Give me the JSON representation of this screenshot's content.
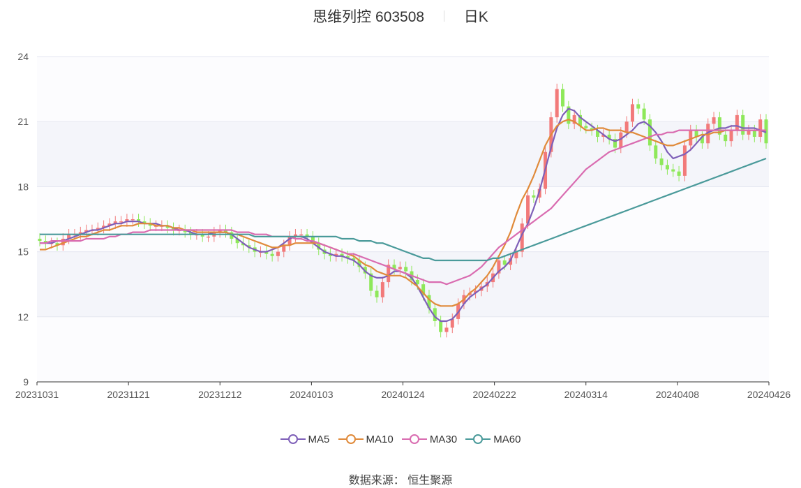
{
  "title": {
    "name": "思维列控 603508",
    "period": "日K"
  },
  "source_text": "数据来源： 恒生聚源",
  "colors": {
    "up": "#f27a7a",
    "down": "#8ee85a",
    "MA5": "#7e5fb8",
    "MA10": "#e08a3a",
    "MA30": "#d96bb0",
    "MA60": "#4a9a9a"
  },
  "chart_data": {
    "type": "candlestick",
    "ylim": [
      9,
      24
    ],
    "y_ticks": [
      "9",
      "12",
      "15",
      "18",
      "21",
      "24"
    ],
    "x_ticks": [
      "20231031",
      "20231121",
      "20231212",
      "20240103",
      "20240124",
      "20240222",
      "20240314",
      "20240408",
      "20240426"
    ],
    "legend": [
      "MA5",
      "MA10",
      "MA30",
      "MA60"
    ],
    "legend_position": "bottom",
    "grid": true,
    "ohlc_close": [
      15.5,
      15.4,
      15.4,
      15.3,
      15.6,
      15.8,
      15.8,
      15.9,
      16.0,
      16.0,
      16.1,
      16.2,
      16.3,
      16.4,
      16.4,
      16.5,
      16.5,
      16.4,
      16.3,
      16.2,
      16.2,
      16.2,
      16.1,
      16.0,
      16.0,
      15.9,
      15.8,
      15.8,
      15.7,
      15.7,
      15.9,
      16.0,
      15.9,
      15.6,
      15.4,
      15.3,
      15.2,
      15.0,
      15.0,
      14.9,
      14.8,
      15.0,
      15.3,
      15.7,
      15.8,
      15.8,
      15.7,
      15.4,
      15.1,
      14.9,
      14.8,
      14.9,
      14.8,
      14.7,
      14.6,
      14.3,
      14.0,
      13.2,
      12.9,
      13.6,
      14.4,
      14.2,
      14.3,
      14.1,
      13.7,
      13.5,
      13.0,
      12.4,
      11.8,
      11.3,
      11.5,
      11.9,
      12.6,
      13.0,
      13.1,
      13.2,
      13.4,
      13.6,
      14.0,
      14.6,
      14.4,
      14.7,
      15.0,
      16.3,
      17.6,
      17.5,
      17.9,
      19.6,
      21.2,
      22.5,
      21.7,
      20.9,
      21.3,
      20.8,
      20.7,
      20.6,
      20.3,
      20.4,
      20.2,
      19.8,
      20.5,
      21.0,
      21.8,
      21.6,
      21.1,
      19.9,
      19.3,
      19.0,
      18.8,
      18.7,
      18.5,
      19.9,
      20.6,
      20.3,
      20.0,
      20.9,
      21.2,
      20.4,
      20.1,
      20.6,
      21.3,
      20.4,
      20.6,
      20.3,
      21.1,
      20.0
    ],
    "ohlc_open": [
      15.6,
      15.5,
      15.4,
      15.4,
      15.3,
      15.6,
      15.8,
      15.8,
      15.9,
      16.0,
      16.0,
      16.1,
      16.2,
      16.3,
      16.4,
      16.4,
      16.5,
      16.5,
      16.4,
      16.3,
      16.2,
      16.2,
      16.2,
      16.1,
      16.0,
      16.0,
      15.9,
      15.8,
      15.8,
      15.7,
      15.7,
      15.9,
      16.0,
      15.9,
      15.6,
      15.4,
      15.3,
      15.2,
      15.0,
      15.0,
      14.9,
      14.8,
      15.0,
      15.3,
      15.7,
      15.8,
      15.8,
      15.7,
      15.4,
      15.1,
      14.9,
      14.8,
      14.9,
      14.8,
      14.7,
      14.6,
      14.3,
      14.0,
      13.2,
      12.9,
      13.6,
      14.4,
      14.2,
      14.3,
      14.1,
      13.7,
      13.5,
      13.0,
      12.4,
      11.8,
      11.3,
      11.5,
      11.9,
      12.6,
      13.0,
      13.1,
      13.2,
      13.4,
      13.6,
      14.0,
      14.6,
      14.4,
      14.7,
      15.0,
      16.3,
      17.6,
      17.5,
      17.9,
      19.6,
      21.2,
      22.5,
      21.7,
      20.9,
      21.3,
      20.8,
      20.7,
      20.6,
      20.3,
      20.4,
      20.2,
      19.8,
      20.5,
      21.0,
      21.8,
      21.6,
      21.1,
      19.9,
      19.3,
      19.0,
      18.8,
      18.7,
      18.5,
      19.9,
      20.6,
      20.3,
      20.0,
      20.9,
      21.2,
      20.4,
      20.1,
      20.6,
      21.3,
      20.4,
      20.6,
      20.3,
      21.1
    ],
    "ma_series": [
      {
        "name": "MA5",
        "values": [
          15.4,
          15.4,
          15.4,
          15.5,
          15.5,
          15.6,
          15.7,
          15.8,
          15.9,
          16.0,
          16.0,
          16.1,
          16.2,
          16.3,
          16.3,
          16.4,
          16.4,
          16.4,
          16.3,
          16.3,
          16.3,
          16.2,
          16.2,
          16.1,
          16.0,
          16.0,
          15.9,
          15.8,
          15.8,
          15.8,
          15.9,
          15.9,
          15.9,
          15.8,
          15.6,
          15.4,
          15.2,
          15.1,
          15.0,
          15.0,
          15.1,
          15.2,
          15.4,
          15.6,
          15.7,
          15.7,
          15.6,
          15.4,
          15.2,
          15.0,
          14.9,
          14.8,
          14.8,
          14.7,
          14.6,
          14.4,
          14.1,
          13.9,
          13.8,
          13.8,
          13.9,
          14.1,
          14.1,
          14.0,
          13.8,
          13.4,
          12.9,
          12.4,
          12.0,
          11.8,
          11.8,
          11.9,
          12.2,
          12.6,
          12.9,
          13.1,
          13.3,
          13.5,
          13.8,
          14.1,
          14.3,
          14.6,
          15.2,
          15.8,
          16.3,
          17.0,
          17.8,
          18.8,
          19.8,
          20.7,
          21.3,
          21.6,
          21.5,
          21.2,
          21.0,
          20.8,
          20.6,
          20.4,
          20.2,
          20.1,
          20.2,
          20.4,
          20.6,
          20.9,
          21.0,
          20.8,
          20.5,
          20.1,
          19.6,
          19.3,
          19.4,
          19.5,
          19.7,
          20.0,
          20.3,
          20.5,
          20.6,
          20.7,
          20.7,
          20.8,
          20.8,
          20.7,
          20.7,
          20.7,
          20.6,
          20.5
        ]
      },
      {
        "name": "MA10",
        "values": [
          15.1,
          15.1,
          15.2,
          15.3,
          15.4,
          15.5,
          15.6,
          15.7,
          15.7,
          15.8,
          15.9,
          16.0,
          16.0,
          16.1,
          16.2,
          16.2,
          16.2,
          16.3,
          16.3,
          16.3,
          16.2,
          16.2,
          16.2,
          16.1,
          16.1,
          16.0,
          16.0,
          15.9,
          15.9,
          15.9,
          15.9,
          15.9,
          15.9,
          15.8,
          15.8,
          15.7,
          15.6,
          15.5,
          15.4,
          15.3,
          15.2,
          15.2,
          15.3,
          15.3,
          15.4,
          15.4,
          15.4,
          15.4,
          15.4,
          15.3,
          15.2,
          15.1,
          15.0,
          14.9,
          14.8,
          14.6,
          14.4,
          14.3,
          14.1,
          14.0,
          13.9,
          13.9,
          13.9,
          13.8,
          13.6,
          13.4,
          13.1,
          12.8,
          12.6,
          12.5,
          12.5,
          12.5,
          12.6,
          12.8,
          13.1,
          13.3,
          13.6,
          13.9,
          14.3,
          14.8,
          15.3,
          15.9,
          16.7,
          17.4,
          17.9,
          18.5,
          19.2,
          19.9,
          20.4,
          20.8,
          21.0,
          21.1,
          21.0,
          20.8,
          20.6,
          20.6,
          20.7,
          20.7,
          20.6,
          20.6,
          20.6,
          20.5,
          20.5,
          20.4,
          20.3,
          20.2,
          20.1,
          20.0,
          19.9,
          19.9,
          20.0,
          20.1,
          20.2,
          20.3,
          20.4,
          20.4,
          20.5,
          20.5,
          20.6,
          20.6,
          20.6,
          20.6,
          20.6,
          20.6,
          20.6,
          20.6
        ]
      },
      {
        "name": "MA30",
        "values": [
          15.4,
          15.4,
          15.5,
          15.5,
          15.5,
          15.5,
          15.5,
          15.5,
          15.6,
          15.6,
          15.6,
          15.6,
          15.7,
          15.7,
          15.8,
          15.8,
          15.9,
          15.9,
          15.9,
          16.0,
          16.0,
          16.0,
          16.0,
          16.0,
          16.0,
          16.0,
          16.0,
          16.0,
          16.0,
          16.0,
          16.0,
          16.0,
          16.0,
          16.0,
          15.9,
          15.9,
          15.9,
          15.8,
          15.8,
          15.8,
          15.7,
          15.7,
          15.7,
          15.7,
          15.6,
          15.6,
          15.5,
          15.5,
          15.4,
          15.3,
          15.2,
          15.1,
          15.0,
          14.9,
          14.9,
          14.8,
          14.7,
          14.6,
          14.5,
          14.4,
          14.3,
          14.2,
          14.1,
          14.0,
          13.9,
          13.8,
          13.7,
          13.6,
          13.6,
          13.6,
          13.5,
          13.6,
          13.7,
          13.8,
          13.9,
          14.1,
          14.3,
          14.6,
          14.9,
          15.2,
          15.4,
          15.6,
          15.8,
          16.0,
          16.2,
          16.4,
          16.6,
          16.8,
          17.0,
          17.3,
          17.6,
          17.9,
          18.2,
          18.5,
          18.8,
          19.0,
          19.2,
          19.4,
          19.6,
          19.7,
          19.8,
          19.9,
          20.0,
          20.1,
          20.2,
          20.3,
          20.4,
          20.4,
          20.5,
          20.5,
          20.6,
          20.6,
          20.6,
          20.6,
          20.6,
          20.6,
          20.6,
          20.6,
          20.6,
          20.6,
          20.6,
          20.6,
          20.6,
          20.6,
          20.6,
          20.6
        ]
      },
      {
        "name": "MA60",
        "values": [
          15.8,
          15.8,
          15.8,
          15.8,
          15.8,
          15.8,
          15.8,
          15.8,
          15.8,
          15.8,
          15.8,
          15.8,
          15.8,
          15.8,
          15.8,
          15.8,
          15.8,
          15.8,
          15.8,
          15.8,
          15.8,
          15.8,
          15.8,
          15.8,
          15.8,
          15.8,
          15.8,
          15.8,
          15.8,
          15.8,
          15.8,
          15.8,
          15.8,
          15.8,
          15.8,
          15.8,
          15.8,
          15.7,
          15.7,
          15.7,
          15.7,
          15.7,
          15.7,
          15.7,
          15.7,
          15.7,
          15.7,
          15.7,
          15.7,
          15.7,
          15.7,
          15.7,
          15.6,
          15.6,
          15.6,
          15.5,
          15.5,
          15.5,
          15.4,
          15.4,
          15.3,
          15.2,
          15.1,
          15.0,
          14.9,
          14.8,
          14.7,
          14.7,
          14.6,
          14.6,
          14.6,
          14.6,
          14.6,
          14.6,
          14.6,
          14.6,
          14.6,
          14.6,
          14.7,
          14.7,
          14.8,
          14.9,
          15.0,
          15.1,
          15.2,
          15.3,
          15.4,
          15.5,
          15.6,
          15.7,
          15.8,
          15.9,
          16.0,
          16.1,
          16.2,
          16.3,
          16.4,
          16.5,
          16.6,
          16.7,
          16.8,
          16.9,
          17.0,
          17.1,
          17.2,
          17.3,
          17.4,
          17.5,
          17.6,
          17.7,
          17.8,
          17.9,
          18.0,
          18.1,
          18.2,
          18.3,
          18.4,
          18.5,
          18.6,
          18.7,
          18.8,
          18.9,
          19.0,
          19.1,
          19.2,
          19.3
        ]
      }
    ]
  }
}
